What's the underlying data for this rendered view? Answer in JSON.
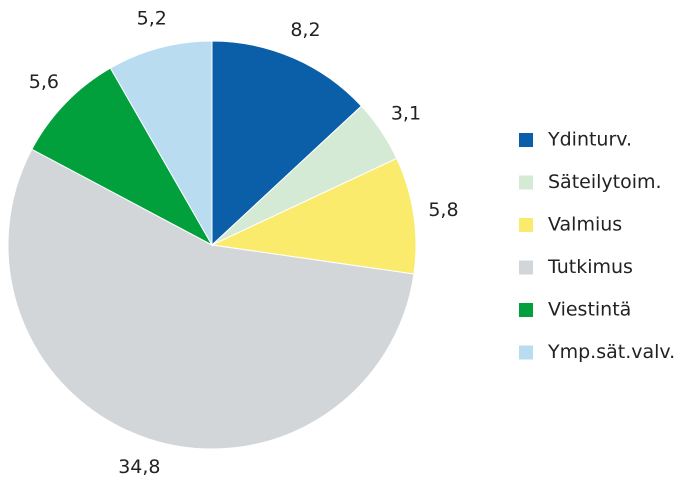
{
  "chart_data": {
    "type": "pie",
    "categories": [
      "Ydinturv.",
      "Säteilytoim.",
      "Valmius",
      "Tutkimus",
      "Viestintä",
      "Ymp.sät.valv."
    ],
    "values": [
      8.2,
      3.1,
      5.8,
      34.8,
      5.6,
      5.2
    ],
    "value_labels": [
      "8,2",
      "3,1",
      "5,8",
      "34,8",
      "5,6",
      "5,2"
    ],
    "colors": [
      "#0b5ea8",
      "#d5ead5",
      "#fbeb6c",
      "#d3d6d9",
      "#01a03d",
      "#badcf0"
    ],
    "legend": "right"
  }
}
